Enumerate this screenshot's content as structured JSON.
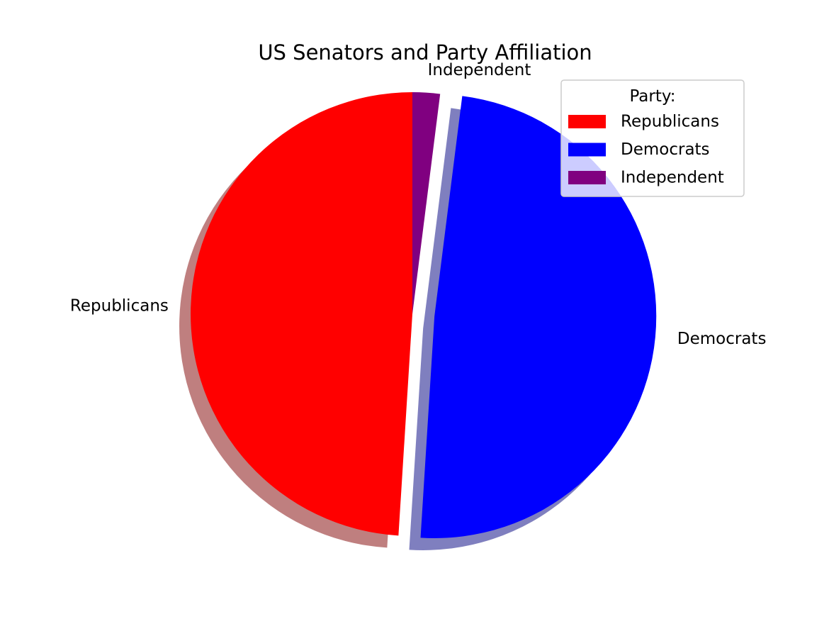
{
  "chart_data": {
    "type": "pie",
    "title": "US Senators and Party Affiliation",
    "categories": [
      "Republicans",
      "Democrats",
      "Independent"
    ],
    "values": [
      49,
      49,
      2
    ],
    "colors": [
      "#ff0000",
      "#0000ff",
      "#800080"
    ],
    "explode": [
      0,
      0.1,
      0
    ],
    "start_angle_deg": 90,
    "direction": "counterclockwise",
    "shadow": true,
    "legend": {
      "title": "Party:",
      "placement": "upper-right",
      "entries": [
        "Republicans",
        "Democrats",
        "Independent"
      ]
    }
  }
}
